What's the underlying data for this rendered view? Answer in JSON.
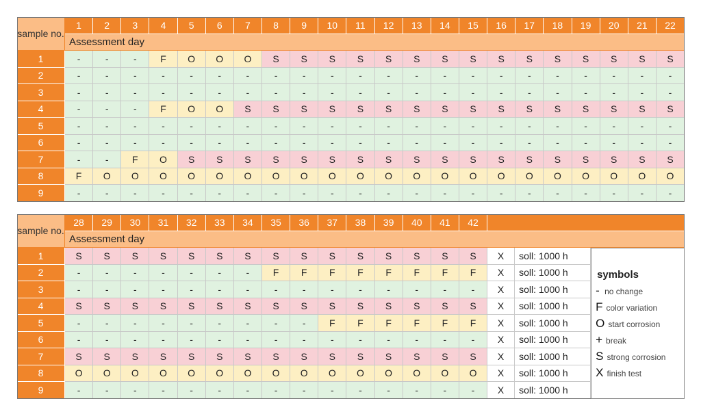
{
  "cell_colors": {
    "-": "#e0f2e0",
    "F": "#fdefc3",
    "O": "#fdefc3",
    "S": "#f8d0d5"
  },
  "table1": {
    "label": "sample no.",
    "subheader": "Assessment day",
    "days": [
      1,
      2,
      3,
      4,
      5,
      6,
      7,
      8,
      9,
      10,
      11,
      12,
      13,
      14,
      15,
      16,
      17,
      18,
      19,
      20,
      21,
      22
    ],
    "rows": [
      {
        "sample": 1,
        "cells": [
          "-",
          "-",
          "-",
          "F",
          "O",
          "O",
          "O",
          "S",
          "S",
          "S",
          "S",
          "S",
          "S",
          "S",
          "S",
          "S",
          "S",
          "S",
          "S",
          "S",
          "S",
          "S"
        ]
      },
      {
        "sample": 2,
        "cells": [
          "-",
          "-",
          "-",
          "-",
          "-",
          "-",
          "-",
          "-",
          "-",
          "-",
          "-",
          "-",
          "-",
          "-",
          "-",
          "-",
          "-",
          "-",
          "-",
          "-",
          "-",
          "-"
        ]
      },
      {
        "sample": 3,
        "cells": [
          "-",
          "-",
          "-",
          "-",
          "-",
          "-",
          "-",
          "-",
          "-",
          "-",
          "-",
          "-",
          "-",
          "-",
          "-",
          "-",
          "-",
          "-",
          "-",
          "-",
          "-",
          "-"
        ]
      },
      {
        "sample": 4,
        "cells": [
          "-",
          "-",
          "-",
          "F",
          "O",
          "O",
          "S",
          "S",
          "S",
          "S",
          "S",
          "S",
          "S",
          "S",
          "S",
          "S",
          "S",
          "S",
          "S",
          "S",
          "S",
          "S"
        ]
      },
      {
        "sample": 5,
        "cells": [
          "-",
          "-",
          "-",
          "-",
          "-",
          "-",
          "-",
          "-",
          "-",
          "-",
          "-",
          "-",
          "-",
          "-",
          "-",
          "-",
          "-",
          "-",
          "-",
          "-",
          "-",
          "-"
        ]
      },
      {
        "sample": 6,
        "cells": [
          "-",
          "-",
          "-",
          "-",
          "-",
          "-",
          "-",
          "-",
          "-",
          "-",
          "-",
          "-",
          "-",
          "-",
          "-",
          "-",
          "-",
          "-",
          "-",
          "-",
          "-",
          "-"
        ]
      },
      {
        "sample": 7,
        "cells": [
          "-",
          "-",
          "F",
          "O",
          "S",
          "S",
          "S",
          "S",
          "S",
          "S",
          "S",
          "S",
          "S",
          "S",
          "S",
          "S",
          "S",
          "S",
          "S",
          "S",
          "S",
          "S"
        ]
      },
      {
        "sample": 8,
        "cells": [
          "F",
          "O",
          "O",
          "O",
          "O",
          "O",
          "O",
          "O",
          "O",
          "O",
          "O",
          "O",
          "O",
          "O",
          "O",
          "O",
          "O",
          "O",
          "O",
          "O",
          "O",
          "O"
        ]
      },
      {
        "sample": 9,
        "cells": [
          "-",
          "-",
          "-",
          "-",
          "-",
          "-",
          "-",
          "-",
          "-",
          "-",
          "-",
          "-",
          "-",
          "-",
          "-",
          "-",
          "-",
          "-",
          "-",
          "-",
          "-",
          "-"
        ]
      }
    ]
  },
  "table2": {
    "label": "sample no.",
    "subheader": "Assessment day",
    "days": [
      28,
      29,
      30,
      31,
      32,
      33,
      34,
      35,
      36,
      37,
      38,
      39,
      40,
      41,
      42
    ],
    "rows": [
      {
        "sample": 1,
        "cells": [
          "S",
          "S",
          "S",
          "S",
          "S",
          "S",
          "S",
          "S",
          "S",
          "S",
          "S",
          "S",
          "S",
          "S",
          "S"
        ],
        "finish": "X",
        "target": "soll: 1000 h"
      },
      {
        "sample": 2,
        "cells": [
          "-",
          "-",
          "-",
          "-",
          "-",
          "-",
          "-",
          "F",
          "F",
          "F",
          "F",
          "F",
          "F",
          "F",
          "F"
        ],
        "finish": "X",
        "target": "soll: 1000 h"
      },
      {
        "sample": 3,
        "cells": [
          "-",
          "-",
          "-",
          "-",
          "-",
          "-",
          "-",
          "-",
          "-",
          "-",
          "-",
          "-",
          "-",
          "-",
          "-"
        ],
        "finish": "X",
        "target": "soll: 1000 h"
      },
      {
        "sample": 4,
        "cells": [
          "S",
          "S",
          "S",
          "S",
          "S",
          "S",
          "S",
          "S",
          "S",
          "S",
          "S",
          "S",
          "S",
          "S",
          "S"
        ],
        "finish": "X",
        "target": "soll: 1000 h"
      },
      {
        "sample": 5,
        "cells": [
          "-",
          "-",
          "-",
          "-",
          "-",
          "-",
          "-",
          "-",
          "-",
          "F",
          "F",
          "F",
          "F",
          "F",
          "F"
        ],
        "finish": "X",
        "target": "soll: 1000 h"
      },
      {
        "sample": 6,
        "cells": [
          "-",
          "-",
          "-",
          "-",
          "-",
          "-",
          "-",
          "-",
          "-",
          "-",
          "-",
          "-",
          "-",
          "-",
          "-"
        ],
        "finish": "X",
        "target": "soll: 1000 h"
      },
      {
        "sample": 7,
        "cells": [
          "S",
          "S",
          "S",
          "S",
          "S",
          "S",
          "S",
          "S",
          "S",
          "S",
          "S",
          "S",
          "S",
          "S",
          "S"
        ],
        "finish": "X",
        "target": "soll: 1000 h"
      },
      {
        "sample": 8,
        "cells": [
          "O",
          "O",
          "O",
          "O",
          "O",
          "O",
          "O",
          "O",
          "O",
          "O",
          "O",
          "O",
          "O",
          "O",
          "O"
        ],
        "finish": "X",
        "target": "soll: 1000 h"
      },
      {
        "sample": 9,
        "cells": [
          "-",
          "-",
          "-",
          "-",
          "-",
          "-",
          "-",
          "-",
          "-",
          "-",
          "-",
          "-",
          "-",
          "-",
          "-"
        ],
        "finish": "X",
        "target": "soll: 1000 h"
      }
    ]
  },
  "legend": {
    "title": "symbols",
    "items": [
      {
        "symbol": "-",
        "text": "no change"
      },
      {
        "symbol": "F",
        "text": "color variation"
      },
      {
        "symbol": "O",
        "text": "start corrosion"
      },
      {
        "symbol": "+",
        "text": "break"
      },
      {
        "symbol": "S",
        "text": "strong corrosion"
      },
      {
        "symbol": "X",
        "text": "finish test"
      }
    ]
  }
}
